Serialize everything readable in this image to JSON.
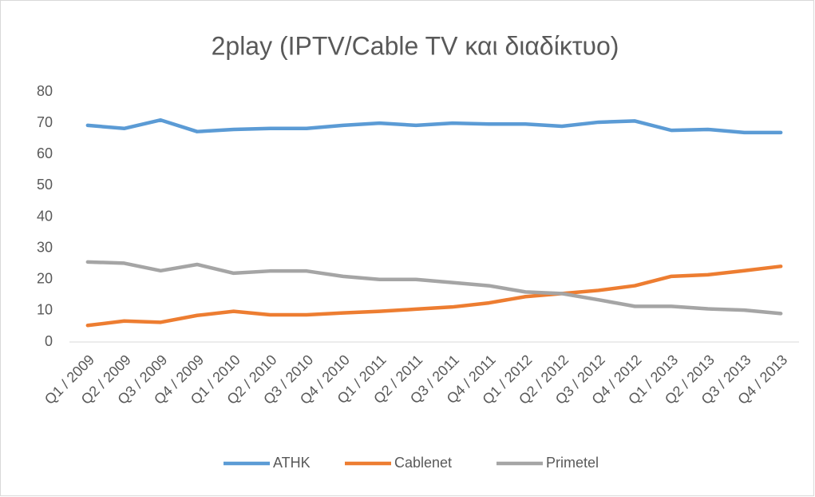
{
  "chart_data": {
    "type": "line",
    "title": "2play (IPTV/Cable TV και διαδίκτυο)",
    "categories": [
      "Q1 / 2009",
      "Q2 / 2009",
      "Q3 / 2009",
      "Q4 / 2009",
      "Q1 / 2010",
      "Q2 / 2010",
      "Q3 / 2010",
      "Q4 / 2010",
      "Q1 / 2011",
      "Q2 / 2011",
      "Q3 / 2011",
      "Q4 / 2011",
      "Q1 / 2012",
      "Q2 / 2012",
      "Q3 / 2012",
      "Q4 / 2012",
      "Q1 / 2013",
      "Q2 / 2013",
      "Q3 / 2013",
      "Q4 / 2013"
    ],
    "series": [
      {
        "name": "ATHK",
        "color": "#5b9bd5",
        "values": [
          69.3,
          68.3,
          71,
          67.3,
          68,
          68.3,
          68.3,
          69.3,
          70,
          69.3,
          70,
          69.7,
          69.7,
          69,
          70.3,
          70.7,
          67.7,
          68,
          67,
          67
        ]
      },
      {
        "name": "Cablenet",
        "color": "#ed7d31",
        "values": [
          5.3,
          6.7,
          6.3,
          8.5,
          9.8,
          8.7,
          8.7,
          9.3,
          9.8,
          10.5,
          11.2,
          12.5,
          14.5,
          15.5,
          16.5,
          18,
          21,
          21.5,
          22.8,
          24.2
        ]
      },
      {
        "name": "Primetel",
        "color": "#a5a5a5",
        "values": [
          25.6,
          25.2,
          22.8,
          24.8,
          22,
          22.7,
          22.7,
          21,
          20,
          20,
          19,
          18,
          16,
          15.5,
          13.5,
          11.4,
          11.4,
          10.6,
          10.2,
          9.1
        ]
      }
    ],
    "ylim": [
      0,
      80
    ],
    "yticks": [
      0,
      10,
      20,
      30,
      40,
      50,
      60,
      70,
      80
    ],
    "grid": false,
    "legend": "bottom"
  }
}
